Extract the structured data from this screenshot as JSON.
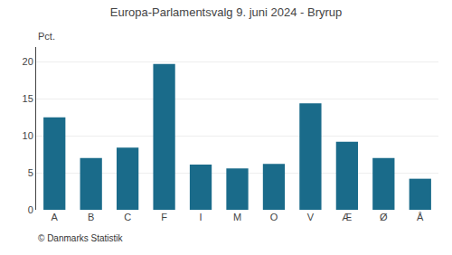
{
  "chart_data": {
    "type": "bar",
    "title": "Europa-Parlamentsvalg 9. juni 2024 - Bryrup",
    "ylabel": "Pct.",
    "categories": [
      "A",
      "B",
      "C",
      "F",
      "I",
      "M",
      "O",
      "V",
      "Æ",
      "Ø",
      "Å"
    ],
    "values": [
      12.5,
      7.0,
      8.4,
      19.7,
      6.1,
      5.6,
      6.2,
      14.4,
      9.2,
      7.0,
      4.2
    ],
    "color": "#1a6b8a",
    "ylim": [
      0,
      22
    ],
    "yticks": [
      0,
      5,
      10,
      15,
      20
    ],
    "grid": true,
    "annotations": [
      "© Danmarks Statistik"
    ]
  }
}
